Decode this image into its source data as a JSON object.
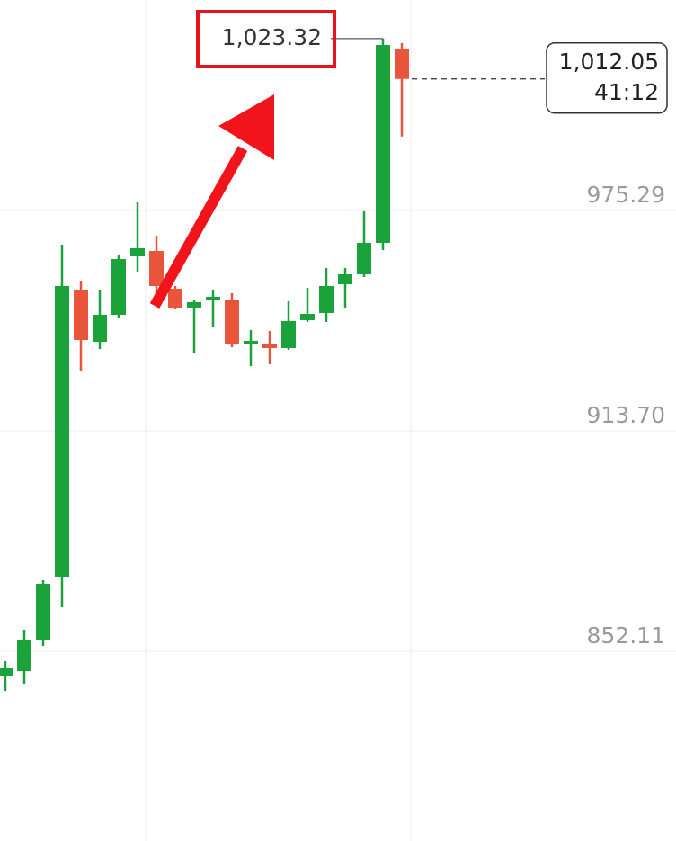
{
  "chart_data": {
    "type": "candlestick",
    "open": [
      845.07,
      846.58,
      855.13,
      872.97,
      953.17,
      938.58,
      946.13,
      962.47,
      963.98,
      953.42,
      948.14,
      950.15,
      950.15,
      938.08,
      938.08,
      936.82,
      944.62,
      946.63,
      954.67,
      957.44,
      966.24,
      1020.28
    ],
    "high": [
      849.34,
      858.14,
      871.97,
      965.73,
      955.68,
      953.17,
      962.72,
      977.55,
      968.25,
      954.17,
      950.4,
      953.17,
      952.16,
      941.85,
      941.6,
      949.9,
      953.67,
      959.2,
      959.2,
      975.04,
      1023.32,
      1022.04
    ],
    "low": [
      841.05,
      843.06,
      853.62,
      864.43,
      930.54,
      936.57,
      945.12,
      958.19,
      951.16,
      947.63,
      935.57,
      942.61,
      937.08,
      931.8,
      932.3,
      936.32,
      944.12,
      944.12,
      948.14,
      956.69,
      964.23,
      995.96
    ],
    "close": [
      847.33,
      855.13,
      870.96,
      954.17,
      939.09,
      946.13,
      961.71,
      964.73,
      954.17,
      948.14,
      949.65,
      951.16,
      938.08,
      938.84,
      936.82,
      944.37,
      946.38,
      954.17,
      957.44,
      966.24,
      1021.54,
      1012.05
    ],
    "up_color": "#1aa33a",
    "down_color": "#e8553a",
    "ylim": [
      799.07,
      1034.11
    ],
    "yticks": [
      852.11,
      {
        "value": 913.7,
        "label": "913.70"
      },
      975.29
    ],
    "grid": true,
    "annotations": {
      "high": {
        "value": 1023.32,
        "label": "1,023.32"
      },
      "last": {
        "value": 1012.05,
        "label": "1,012.05"
      },
      "countdown": "41:12"
    }
  }
}
